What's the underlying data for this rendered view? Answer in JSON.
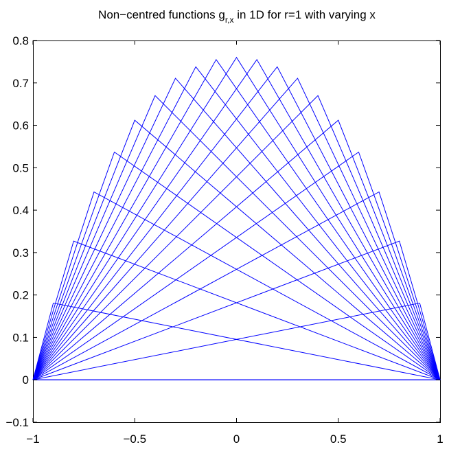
{
  "chart_data": {
    "type": "line",
    "title": {
      "prefix": "Non−centred functions g",
      "subscript": "r,x",
      "suffix": " in 1D for r=1 with varying x"
    },
    "xlabel": "",
    "ylabel": "",
    "xlim": [
      -1,
      1
    ],
    "ylim": [
      -0.1,
      0.8
    ],
    "xticks": [
      -1,
      -0.5,
      0,
      0.5,
      1
    ],
    "xtick_labels": [
      "−1",
      "−0.5",
      "0",
      "0.5",
      "1"
    ],
    "yticks": [
      -0.1,
      0,
      0.1,
      0.2,
      0.3,
      0.4,
      0.5,
      0.6,
      0.7,
      0.8
    ],
    "ytick_labels": [
      "−0.1",
      "0",
      "0.1",
      "0.2",
      "0.3",
      "0.4",
      "0.5",
      "0.6",
      "0.7",
      "0.8"
    ],
    "grid": false,
    "line_color": "#0000ff",
    "series": [
      {
        "peak_x": -1.0,
        "peak_y": 0.0
      },
      {
        "peak_x": -0.9,
        "peak_y": 0.181
      },
      {
        "peak_x": -0.8,
        "peak_y": 0.327
      },
      {
        "peak_x": -0.7,
        "peak_y": 0.443
      },
      {
        "peak_x": -0.6,
        "peak_y": 0.537
      },
      {
        "peak_x": -0.5,
        "peak_y": 0.612
      },
      {
        "peak_x": -0.4,
        "peak_y": 0.67
      },
      {
        "peak_x": -0.3,
        "peak_y": 0.711
      },
      {
        "peak_x": -0.2,
        "peak_y": 0.738
      },
      {
        "peak_x": -0.1,
        "peak_y": 0.755
      },
      {
        "peak_x": 0.0,
        "peak_y": 0.76
      },
      {
        "peak_x": 0.1,
        "peak_y": 0.755
      },
      {
        "peak_x": 0.2,
        "peak_y": 0.738
      },
      {
        "peak_x": 0.3,
        "peak_y": 0.711
      },
      {
        "peak_x": 0.4,
        "peak_y": 0.67
      },
      {
        "peak_x": 0.5,
        "peak_y": 0.612
      },
      {
        "peak_x": 0.6,
        "peak_y": 0.537
      },
      {
        "peak_x": 0.7,
        "peak_y": 0.443
      },
      {
        "peak_x": 0.8,
        "peak_y": 0.327
      },
      {
        "peak_x": 0.9,
        "peak_y": 0.181
      },
      {
        "peak_x": 1.0,
        "peak_y": 0.0
      }
    ]
  }
}
